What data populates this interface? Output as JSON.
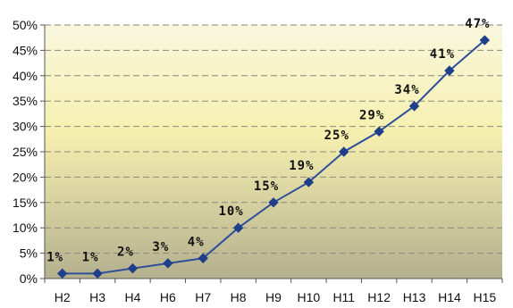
{
  "chart_data": {
    "type": "line",
    "title": "",
    "xlabel": "",
    "ylabel": "",
    "categories": [
      "H2",
      "H3",
      "H4",
      "H6",
      "H7",
      "H8",
      "H9",
      "H10",
      "H11",
      "H12",
      "H13",
      "H14",
      "H15"
    ],
    "series": [
      {
        "values": [
          1,
          1,
          2,
          3,
          4,
          10,
          15,
          19,
          25,
          29,
          34,
          41,
          47
        ],
        "data_labels": [
          "1%",
          "1%",
          "2%",
          "3%",
          "4%",
          "10%",
          "15%",
          "19%",
          "25%",
          "29%",
          "34%",
          "41%",
          "47%"
        ]
      }
    ],
    "ylim": [
      0,
      50
    ],
    "y_ticks": [
      0,
      5,
      10,
      15,
      20,
      25,
      30,
      35,
      40,
      45,
      50
    ],
    "y_tick_labels": [
      "0%",
      "5%",
      "10%",
      "15%",
      "20%",
      "25%",
      "30%",
      "35%",
      "40%",
      "45%",
      "50%"
    ],
    "grid": true,
    "legend": "none",
    "colors": {
      "line": "#2f4f9a",
      "marker": "#1f3f8a",
      "grid": "#8a8a7a",
      "axis": "#555555",
      "bg_top": "#f8f7dd",
      "bg_mid": "#f6f0b0",
      "bg_bottom": "#b4b08e"
    }
  }
}
